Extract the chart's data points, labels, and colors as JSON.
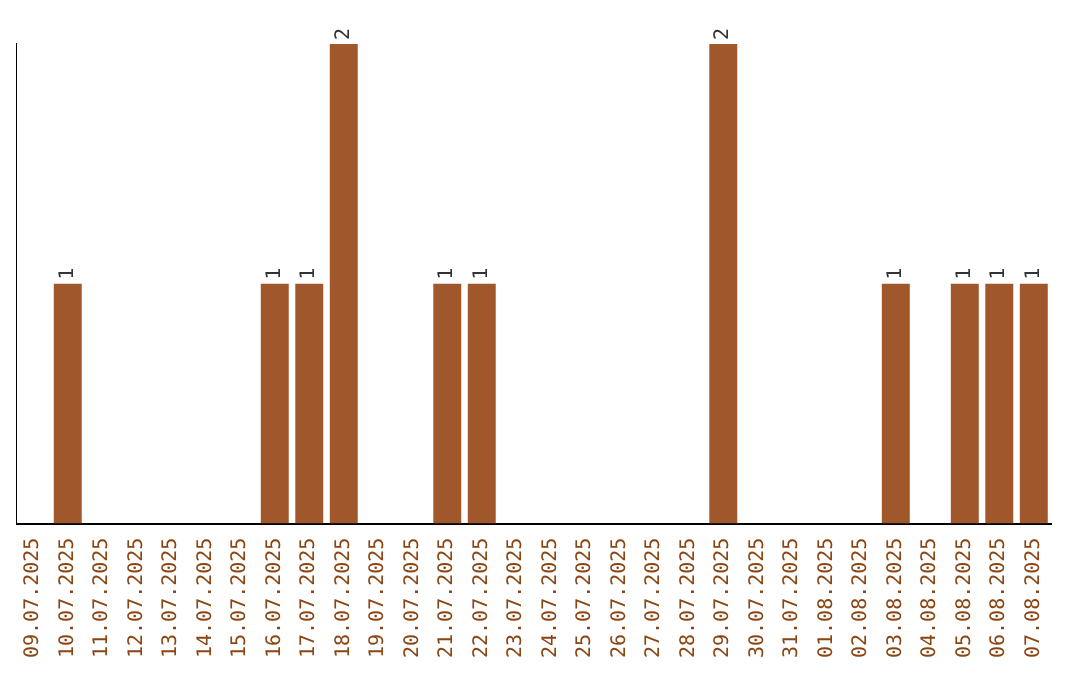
{
  "chart_data": {
    "type": "bar",
    "categories": [
      "09.07.2025",
      "10.07.2025",
      "11.07.2025",
      "12.07.2025",
      "13.07.2025",
      "14.07.2025",
      "15.07.2025",
      "16.07.2025",
      "17.07.2025",
      "18.07.2025",
      "19.07.2025",
      "20.07.2025",
      "21.07.2025",
      "22.07.2025",
      "23.07.2025",
      "24.07.2025",
      "25.07.2025",
      "26.07.2025",
      "27.07.2025",
      "28.07.2025",
      "29.07.2025",
      "30.07.2025",
      "31.07.2025",
      "01.08.2025",
      "02.08.2025",
      "03.08.2025",
      "04.08.2025",
      "05.08.2025",
      "06.08.2025",
      "07.08.2025"
    ],
    "values": [
      0,
      1,
      0,
      0,
      0,
      0,
      0,
      1,
      1,
      2,
      0,
      0,
      1,
      1,
      0,
      0,
      0,
      0,
      0,
      0,
      2,
      0,
      0,
      0,
      0,
      1,
      0,
      1,
      1,
      1
    ],
    "value_labels": [
      null,
      "1",
      null,
      null,
      null,
      null,
      null,
      "1",
      "1",
      "2",
      null,
      null,
      "1",
      "1",
      null,
      null,
      null,
      null,
      null,
      null,
      "2",
      null,
      null,
      null,
      null,
      "1",
      null,
      "1",
      "1",
      "1"
    ],
    "color": "#a0572b",
    "ylim": [
      0,
      2
    ],
    "tick_labels": "x",
    "grid": false,
    "legend": false
  }
}
